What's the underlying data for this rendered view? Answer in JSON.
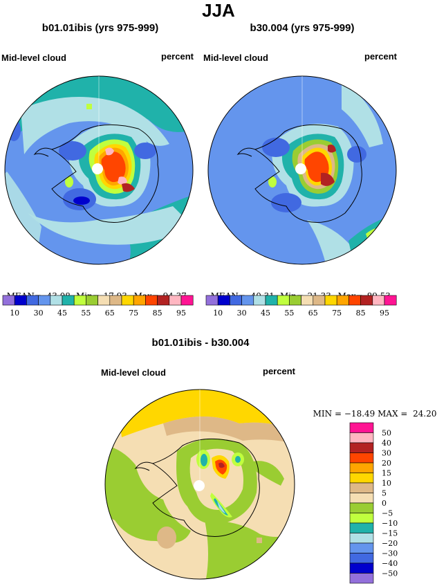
{
  "page": {
    "season": "JJA"
  },
  "panels": [
    {
      "title": "b01.01ibis (yrs 975-999)",
      "left_label": "Mid-level cloud",
      "right_label": "percent",
      "stats": {
        "mean_label": "MEAN=",
        "mean": "43.08",
        "min_label": "Min=",
        "min": "17.93",
        "max_label": "Max=",
        "max": "94.37"
      }
    },
    {
      "title": "b30.004 (yrs 975-999)",
      "left_label": "Mid-level cloud",
      "right_label": "percent",
      "stats": {
        "mean_label": "MEAN=",
        "mean": "40.31",
        "min_label": "Min=",
        "min": "21.33",
        "max_label": "Max=",
        "max": "89.53"
      }
    },
    {
      "title": "b01.01ibis - b30.004",
      "left_label": "Mid-level cloud",
      "right_label": "percent",
      "stats": {
        "min_label": "MIN =",
        "min": "−18.49",
        "max_label": "MAX =",
        "max": "24.20"
      }
    }
  ],
  "colorbar_abs": {
    "colors": [
      "#9370db",
      "#0000cd",
      "#4169e1",
      "#6495ed",
      "#b0e0e6",
      "#20b2aa",
      "#c0ff3e",
      "#9acd32",
      "#f5deb3",
      "#deb887",
      "#ffd700",
      "#ffa500",
      "#ff4500",
      "#b22222",
      "#ffb6c1",
      "#ff1493"
    ],
    "labels": [
      "10",
      "30",
      "45",
      "55",
      "65",
      "75",
      "85",
      "95"
    ]
  },
  "colorbar_diff": {
    "colors": [
      "#ff1493",
      "#ffb6c1",
      "#b22222",
      "#ff4500",
      "#ffa500",
      "#ffd700",
      "#deb887",
      "#f5deb3",
      "#9acd32",
      "#c0ff3e",
      "#20b2aa",
      "#b0e0e6",
      "#6495ed",
      "#4169e1",
      "#0000cd",
      "#9370db"
    ],
    "labels": [
      "50",
      "40",
      "30",
      "20",
      "15",
      "10",
      "5",
      "0",
      "−5",
      "−10",
      "−15",
      "−20",
      "−30",
      "−40",
      "−50"
    ]
  }
}
